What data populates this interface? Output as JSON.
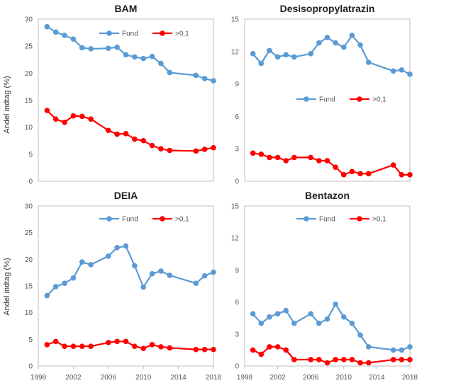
{
  "figure": {
    "ylabel": "Andel indtag (%)"
  },
  "chart_data": [
    {
      "type": "line",
      "title": "BAM",
      "ylim": [
        0,
        30
      ],
      "yticks": [
        0,
        5,
        10,
        15,
        20,
        25,
        30
      ],
      "xlim": [
        1998,
        2018
      ],
      "xticks": [],
      "grid": false,
      "legend": "top-right",
      "series": [
        {
          "name": "Fund",
          "color": "#5b9bd5",
          "x": [
            1999,
            2000,
            2001,
            2002,
            2003,
            2004,
            2006,
            2007,
            2008,
            2009,
            2010,
            2011,
            2012,
            2013,
            2016,
            2017,
            2018
          ],
          "values": [
            28.6,
            27.6,
            27.0,
            26.3,
            24.7,
            24.5,
            24.6,
            24.8,
            23.4,
            23.0,
            22.7,
            23.1,
            21.8,
            20.1,
            19.6,
            19.0,
            18.6
          ]
        },
        {
          "name": ">0,1",
          "color": "#ff0000",
          "x": [
            1999,
            2000,
            2001,
            2002,
            2003,
            2004,
            2006,
            2007,
            2008,
            2009,
            2010,
            2011,
            2012,
            2013,
            2016,
            2017,
            2018
          ],
          "values": [
            13.1,
            11.5,
            10.9,
            12.1,
            12.0,
            11.5,
            9.4,
            8.7,
            8.8,
            7.8,
            7.5,
            6.6,
            6.0,
            5.7,
            5.6,
            5.9,
            6.2
          ]
        }
      ]
    },
    {
      "type": "line",
      "title": "Desisopropylatrazin",
      "ylim": [
        0,
        15
      ],
      "yticks": [
        0,
        3,
        6,
        9,
        12,
        15
      ],
      "xlim": [
        1998,
        2018
      ],
      "xticks": [],
      "grid": false,
      "legend": "middle-right",
      "series": [
        {
          "name": "Fund",
          "color": "#5b9bd5",
          "x": [
            1999,
            2000,
            2001,
            2002,
            2003,
            2004,
            2006,
            2007,
            2008,
            2009,
            2010,
            2011,
            2012,
            2013,
            2016,
            2017,
            2018
          ],
          "values": [
            11.8,
            10.9,
            12.1,
            11.5,
            11.7,
            11.5,
            11.8,
            12.8,
            13.3,
            12.8,
            12.4,
            13.5,
            12.6,
            11.0,
            10.2,
            10.3,
            9.9
          ]
        },
        {
          "name": ">0,1",
          "color": "#ff0000",
          "x": [
            1999,
            2000,
            2001,
            2002,
            2003,
            2004,
            2006,
            2007,
            2008,
            2009,
            2010,
            2011,
            2012,
            2013,
            2016,
            2017,
            2018
          ],
          "values": [
            2.6,
            2.5,
            2.2,
            2.2,
            1.9,
            2.2,
            2.2,
            1.9,
            1.9,
            1.3,
            0.6,
            0.9,
            0.7,
            0.7,
            1.5,
            0.6,
            0.6
          ]
        }
      ]
    },
    {
      "type": "line",
      "title": "DEIA",
      "ylim": [
        0,
        30
      ],
      "yticks": [
        0,
        5,
        10,
        15,
        20,
        25,
        30
      ],
      "xlim": [
        1998,
        2018
      ],
      "xticks": [
        "1998",
        "2002",
        "2006",
        "2010",
        "2014",
        "2018"
      ],
      "grid": false,
      "legend": "top-right",
      "series": [
        {
          "name": "Fund",
          "color": "#5b9bd5",
          "x": [
            1999,
            2000,
            2001,
            2002,
            2003,
            2004,
            2006,
            2007,
            2008,
            2009,
            2010,
            2011,
            2012,
            2013,
            2016,
            2017,
            2018
          ],
          "values": [
            13.2,
            14.9,
            15.5,
            16.5,
            19.5,
            19.0,
            20.6,
            22.2,
            22.5,
            18.8,
            14.8,
            17.3,
            17.8,
            17.0,
            15.5,
            16.9,
            17.6
          ]
        },
        {
          "name": ">0,1",
          "color": "#ff0000",
          "x": [
            1999,
            2000,
            2001,
            2002,
            2003,
            2004,
            2006,
            2007,
            2008,
            2009,
            2010,
            2011,
            2012,
            2013,
            2016,
            2017,
            2018
          ],
          "values": [
            4.0,
            4.6,
            3.7,
            3.7,
            3.7,
            3.7,
            4.4,
            4.6,
            4.6,
            3.7,
            3.3,
            4.0,
            3.6,
            3.4,
            3.1,
            3.1,
            3.1
          ]
        }
      ]
    },
    {
      "type": "line",
      "title": "Bentazon",
      "ylim": [
        0,
        15
      ],
      "yticks": [
        0,
        3,
        6,
        9,
        12,
        15
      ],
      "xlim": [
        1998,
        2018
      ],
      "xticks": [
        "1998",
        "2002",
        "2006",
        "2010",
        "2014",
        "2018"
      ],
      "grid": false,
      "legend": "top-right",
      "series": [
        {
          "name": "Fund",
          "color": "#5b9bd5",
          "x": [
            1999,
            2000,
            2001,
            2002,
            2003,
            2004,
            2006,
            2007,
            2008,
            2009,
            2010,
            2011,
            2012,
            2013,
            2016,
            2017,
            2018
          ],
          "values": [
            4.9,
            4.0,
            4.6,
            4.9,
            5.2,
            4.0,
            4.9,
            4.0,
            4.4,
            5.8,
            4.6,
            4.0,
            2.9,
            1.8,
            1.5,
            1.5,
            1.8
          ]
        },
        {
          "name": ">0,1",
          "color": "#ff0000",
          "x": [
            1999,
            2000,
            2001,
            2002,
            2003,
            2004,
            2006,
            2007,
            2008,
            2009,
            2010,
            2011,
            2012,
            2013,
            2016,
            2017,
            2018
          ],
          "values": [
            1.5,
            1.1,
            1.8,
            1.8,
            1.5,
            0.6,
            0.6,
            0.6,
            0.3,
            0.6,
            0.6,
            0.6,
            0.3,
            0.3,
            0.6,
            0.6,
            0.6
          ]
        }
      ]
    }
  ]
}
